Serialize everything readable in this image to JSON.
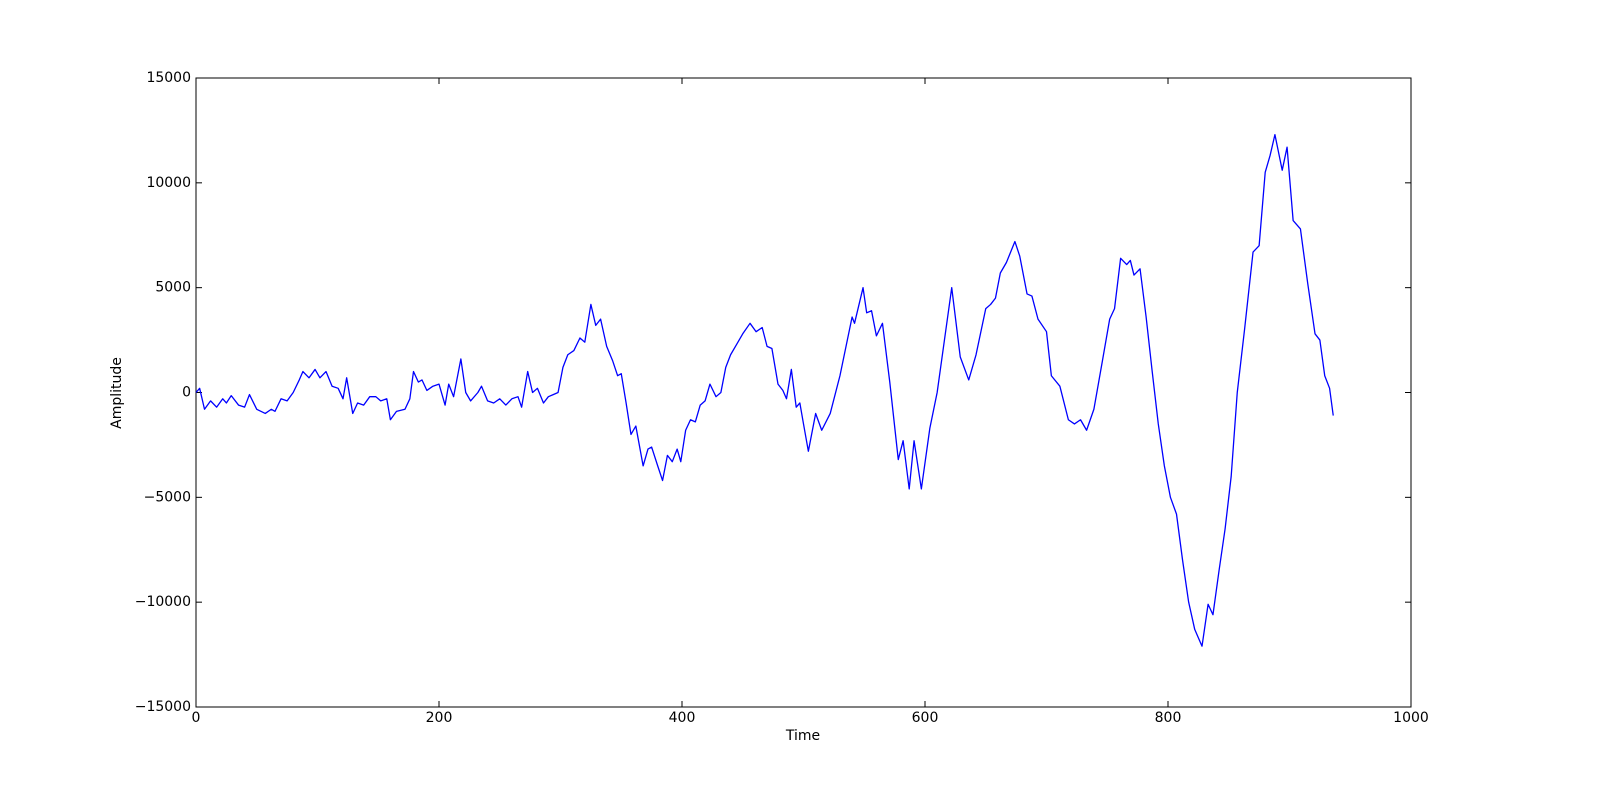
{
  "chart_data": {
    "type": "line",
    "x_label": "Time",
    "y_label": "Amplitude",
    "x": [
      0,
      3,
      7,
      12,
      17,
      22,
      25,
      29,
      35,
      40,
      44,
      50,
      57,
      62,
      65,
      70,
      75,
      80,
      85,
      88,
      93,
      98,
      102,
      107,
      112,
      117,
      121,
      124,
      129,
      133,
      138,
      143,
      148,
      152,
      157,
      160,
      165,
      172,
      176,
      179,
      183,
      186,
      190,
      195,
      200,
      205,
      208,
      212,
      218,
      222,
      226,
      232,
      235,
      240,
      245,
      250,
      255,
      260,
      265,
      268,
      273,
      277,
      281,
      286,
      290,
      294,
      298,
      302,
      306,
      311,
      316,
      320,
      325,
      329,
      333,
      338,
      343,
      347,
      350,
      354,
      358,
      362,
      368,
      372,
      375,
      380,
      384,
      388,
      392,
      396,
      399,
      403,
      407,
      411,
      415,
      419,
      423,
      428,
      432,
      436,
      440,
      445,
      450,
      456,
      461,
      466,
      470,
      474,
      479,
      483,
      486,
      490,
      494,
      497,
      500,
      504,
      510,
      515,
      522,
      530,
      540,
      542,
      549,
      552,
      556,
      560,
      565,
      571,
      578,
      582,
      587,
      591,
      597,
      604,
      610,
      616,
      622,
      629,
      636,
      642,
      650,
      654,
      658,
      662,
      667,
      674,
      678,
      684,
      688,
      693,
      700,
      704,
      711,
      718,
      723,
      728,
      733,
      739,
      746,
      752,
      756,
      761,
      766,
      769,
      772,
      777,
      782,
      787,
      792,
      797,
      802,
      807,
      812,
      817,
      822,
      828,
      833,
      837,
      842,
      847,
      852,
      857,
      863,
      870,
      875,
      880,
      884,
      888,
      894,
      898,
      903,
      909,
      915,
      921,
      925,
      929,
      933,
      936
    ],
    "series": [
      {
        "color": "#0000ff",
        "values": [
          0,
          200,
          -800,
          -400,
          -700,
          -300,
          -500,
          -150,
          -600,
          -700,
          -100,
          -800,
          -1000,
          -800,
          -900,
          -300,
          -400,
          0,
          600,
          1000,
          700,
          1100,
          700,
          1000,
          300,
          200,
          -300,
          700,
          -1000,
          -500,
          -600,
          -200,
          -200,
          -400,
          -300,
          -1300,
          -900,
          -800,
          -300,
          1000,
          500,
          600,
          100,
          300,
          400,
          -600,
          400,
          -200,
          1600,
          0,
          -400,
          0,
          300,
          -400,
          -500,
          -300,
          -600,
          -300,
          -200,
          -700,
          1000,
          0,
          200,
          -500,
          -200,
          -100,
          0,
          1200,
          1800,
          2000,
          2600,
          2400,
          4200,
          3200,
          3500,
          2200,
          1500,
          800,
          900,
          -500,
          -2000,
          -1600,
          -3500,
          -2700,
          -2600,
          -3500,
          -4200,
          -3000,
          -3300,
          -2700,
          -3300,
          -1800,
          -1300,
          -1400,
          -600,
          -400,
          400,
          -200,
          0,
          1200,
          1800,
          2300,
          2800,
          3300,
          2900,
          3100,
          2200,
          2100,
          400,
          100,
          -300,
          1100,
          -700,
          -500,
          -1500,
          -2800,
          -1000,
          -1800,
          -1000,
          800,
          3600,
          3300,
          5000,
          3800,
          3900,
          2700,
          3300,
          500,
          -3200,
          -2300,
          -4600,
          -2300,
          -4600,
          -1700,
          0,
          2500,
          5000,
          1700,
          600,
          1800,
          4000,
          4200,
          4500,
          5700,
          6200,
          7200,
          6500,
          4700,
          4600,
          3500,
          2900,
          800,
          300,
          -1300,
          -1500,
          -1300,
          -1800,
          -800,
          1500,
          3500,
          4000,
          6400,
          6100,
          6300,
          5600,
          5900,
          3600,
          1000,
          -1500,
          -3500,
          -5000,
          -5800,
          -8000,
          -10000,
          -11300,
          -12100,
          -10100,
          -10600,
          -8500,
          -6500,
          -4000,
          0,
          3000,
          6700,
          7000,
          10500,
          11300,
          12300,
          10600,
          11700,
          8200,
          7800,
          5200,
          2800,
          2500,
          800,
          200,
          -1100
        ]
      }
    ],
    "xlim": [
      0,
      1000
    ],
    "xticks": [
      0,
      200,
      400,
      600,
      800,
      1000
    ],
    "ylim": [
      -15000,
      15000
    ],
    "yticks": [
      {
        "value": -15000,
        "label": "−15000"
      },
      {
        "value": -10000,
        "label": "−10000"
      },
      {
        "value": -5000,
        "label": "−5000"
      },
      0,
      5000,
      10000,
      15000
    ]
  }
}
